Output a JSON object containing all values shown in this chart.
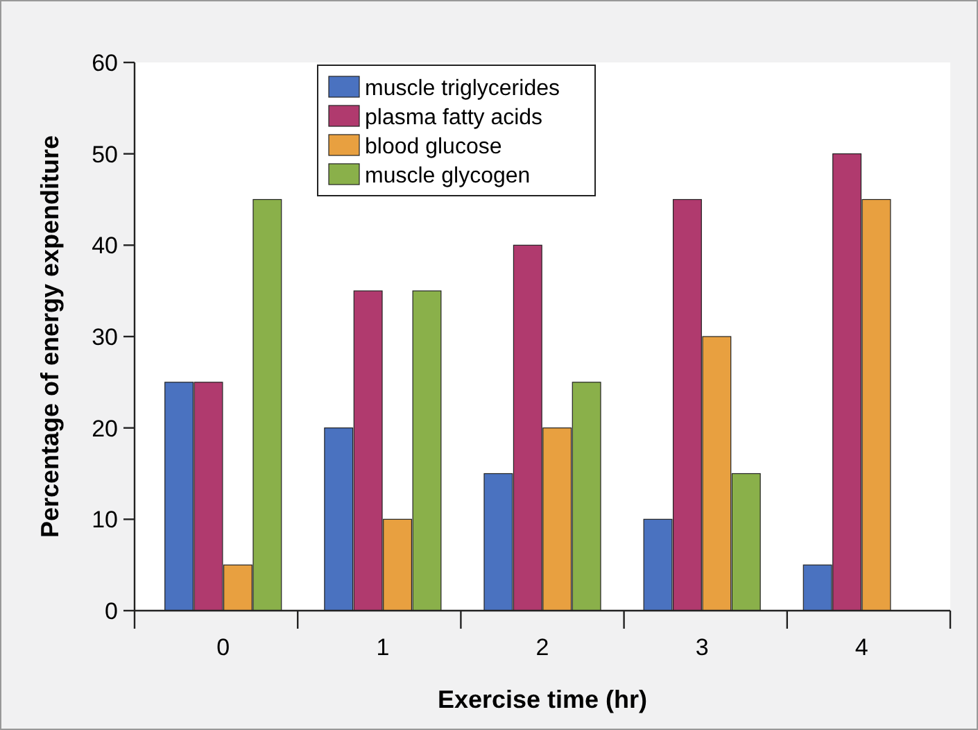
{
  "chart_data": {
    "type": "bar",
    "xlabel": "Exercise time (hr)",
    "ylabel": "Percentage of energy expenditure",
    "categories": [
      "0",
      "1",
      "2",
      "3",
      "4"
    ],
    "series": [
      {
        "name": "muscle triglycerides",
        "color": "#4a72c0",
        "values": [
          25,
          20,
          15,
          10,
          5
        ]
      },
      {
        "name": "plasma fatty acids",
        "color": "#b03a6e",
        "values": [
          25,
          35,
          40,
          45,
          50
        ]
      },
      {
        "name": "blood glucose",
        "color": "#e8a040",
        "values": [
          5,
          10,
          20,
          30,
          45
        ]
      },
      {
        "name": "muscle glycogen",
        "color": "#8ab04a",
        "values": [
          45,
          35,
          25,
          15,
          null
        ]
      }
    ],
    "ylim": [
      0,
      60
    ],
    "yticks": [
      0,
      10,
      20,
      30,
      40,
      50,
      60
    ],
    "grid": false,
    "legend": "top left"
  }
}
